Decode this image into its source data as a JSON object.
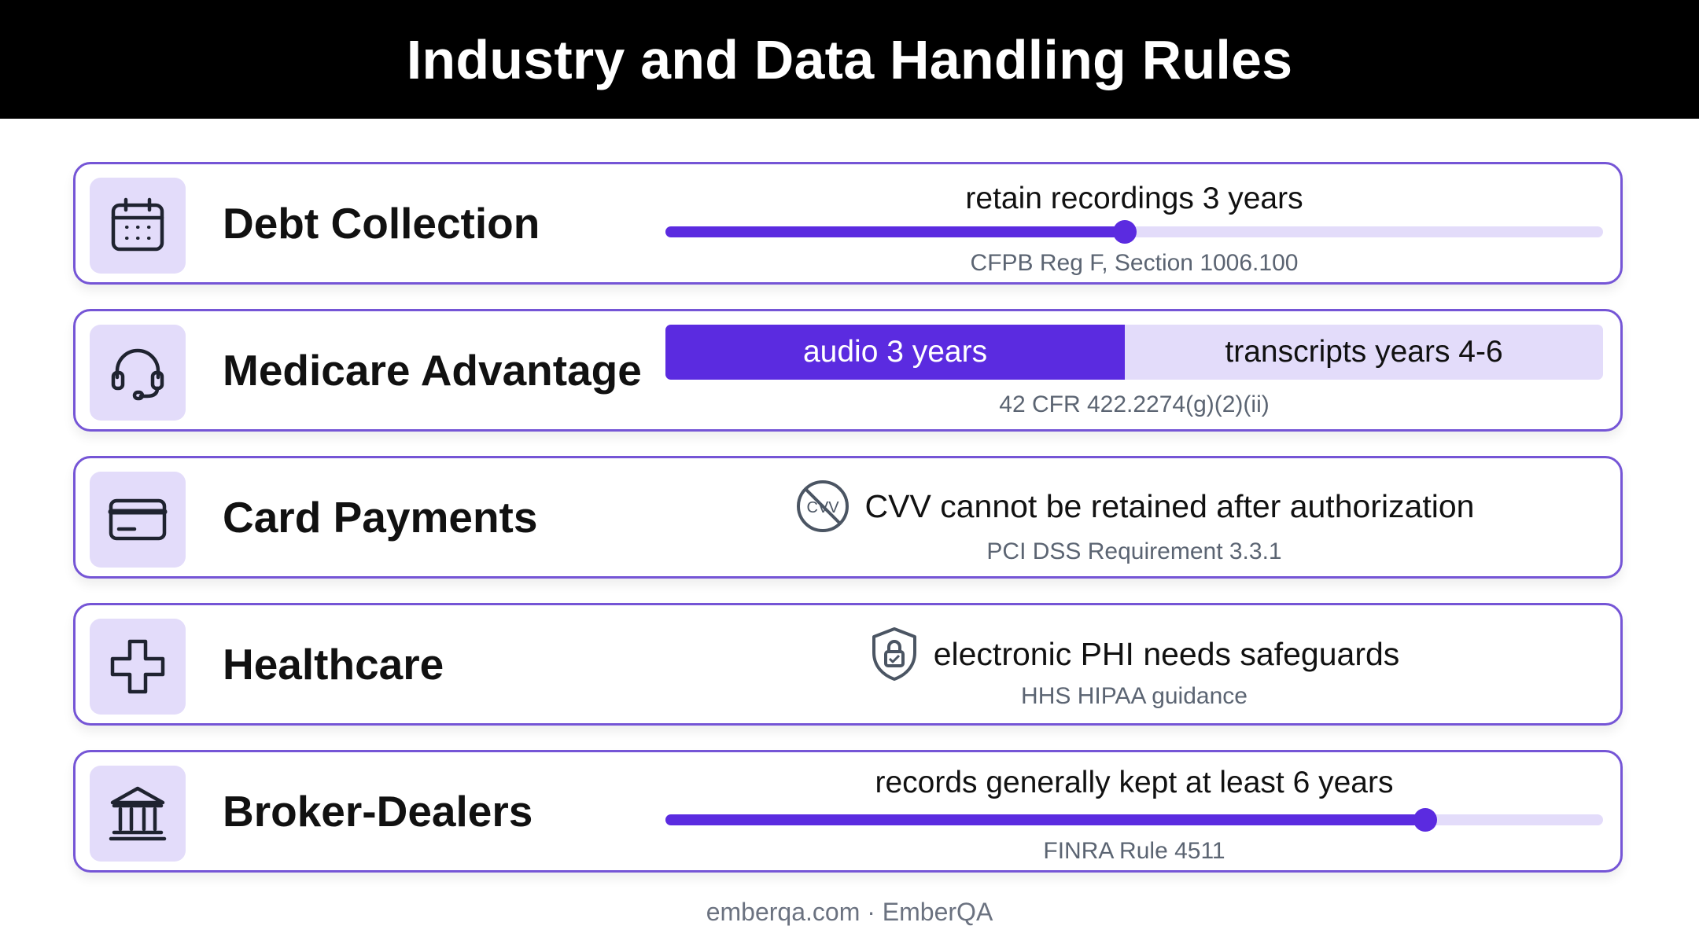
{
  "title": "Industry and Data Handling Rules",
  "colors": {
    "accent": "#5b2be0",
    "accent_light": "#e3dcfa",
    "border": "#7555d6"
  },
  "rows": [
    {
      "title": "Debt Collection",
      "icon": "calendar-icon",
      "kind": "progress",
      "label": "retain recordings 3 years",
      "progress": 0.49,
      "citation": "CFPB Reg F, Section 1006.100"
    },
    {
      "title": "Medicare Advantage",
      "icon": "headset-icon",
      "kind": "split",
      "segment_a": "audio 3 years",
      "segment_b": "transcripts years 4-6",
      "split_fraction": 0.49,
      "citation": "42 CFR 422.2274(g)(2)(ii)"
    },
    {
      "title": "Card Payments",
      "icon": "credit-card-icon",
      "kind": "statement",
      "statement_icon": "no-cvv-icon",
      "statement_icon_text": "CVV",
      "statement": "CVV cannot be retained after authorization",
      "citation": "PCI DSS Requirement 3.3.1"
    },
    {
      "title": "Healthcare",
      "icon": "medical-cross-icon",
      "kind": "statement",
      "statement_icon": "shield-lock-icon",
      "statement": "electronic PHI needs safeguards",
      "citation": "HHS HIPAA guidance"
    },
    {
      "title": "Broker-Dealers",
      "icon": "bank-icon",
      "kind": "progress",
      "label": "records generally kept at least 6 years",
      "progress": 0.81,
      "citation": "FINRA Rule 4511"
    }
  ],
  "footer": "emberqa.com · EmberQA"
}
